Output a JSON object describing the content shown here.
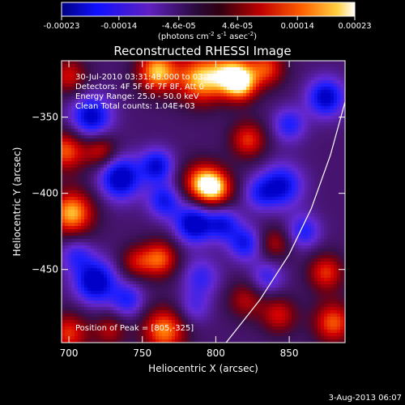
{
  "chart_data": {
    "type": "heatmap",
    "title": "Reconstructed RHESSI Image",
    "xlabel": "Heliocentric X (arcsec)",
    "ylabel": "Heliocentric Y (arcsec)",
    "xlim": [
      695,
      888
    ],
    "ylim": [
      -498,
      -313
    ],
    "x_ticks": [
      700,
      750,
      800,
      850
    ],
    "y_ticks": [
      -450,
      -400,
      -350
    ],
    "colorbar": {
      "label_main": "(photons cm",
      "label_sup1": "-2",
      "label_mid": " s",
      "label_sup2": "-1",
      "label_tail": " asec",
      "label_sup3": "-2",
      "label_close": ")",
      "range": [
        -0.00023,
        0.00023
      ],
      "ticks": [
        "-0.00023",
        "-0.00014",
        "-4.6e-05",
        "4.6e-05",
        "0.00014",
        "0.00023"
      ],
      "tick_values": [
        -0.00023,
        -0.00014,
        -4.6e-05,
        4.6e-05,
        0.00014,
        0.00023
      ]
    },
    "annotations": [
      "30-Jul-2010 03:31:48.000 to 03:33:00.000",
      "Detectors: 4F 5F 6F 7F 8F, Att 0",
      "Energy Range: 25.0 - 50.0 keV",
      "Clean    Total counts: 1.04E+03"
    ],
    "peak_label": "Position of Peak = [805,-325]",
    "peak": [
      805,
      -325
    ],
    "limb_points": [
      [
        807,
        -498
      ],
      [
        830,
        -470
      ],
      [
        850,
        -440
      ],
      [
        865,
        -410
      ],
      [
        878,
        -375
      ],
      [
        888,
        -340
      ]
    ],
    "blobs": [
      {
        "x": 760,
        "y": -320,
        "v": 1.0,
        "s": 10
      },
      {
        "x": 790,
        "y": -325,
        "v": 1.0,
        "s": 12
      },
      {
        "x": 812,
        "y": -322,
        "v": 0.9,
        "s": 10
      },
      {
        "x": 835,
        "y": -318,
        "v": 0.7,
        "s": 9
      },
      {
        "x": 700,
        "y": -323,
        "v": 0.6,
        "s": 9
      },
      {
        "x": 722,
        "y": -372,
        "v": 0.6,
        "s": 8
      },
      {
        "x": 698,
        "y": -372,
        "v": 0.8,
        "s": 10
      },
      {
        "x": 702,
        "y": -413,
        "v": 1.0,
        "s": 11
      },
      {
        "x": 700,
        "y": -492,
        "v": 0.7,
        "s": 10
      },
      {
        "x": 728,
        "y": -490,
        "v": 0.5,
        "s": 8
      },
      {
        "x": 745,
        "y": -445,
        "v": 0.5,
        "s": 8
      },
      {
        "x": 762,
        "y": -443,
        "v": 0.8,
        "s": 9
      },
      {
        "x": 765,
        "y": -490,
        "v": 0.9,
        "s": 11
      },
      {
        "x": 790,
        "y": -393,
        "v": 0.8,
        "s": 10
      },
      {
        "x": 800,
        "y": -397,
        "v": 0.8,
        "s": 9
      },
      {
        "x": 818,
        "y": -330,
        "v": 0.6,
        "s": 8
      },
      {
        "x": 822,
        "y": -365,
        "v": 0.7,
        "s": 9
      },
      {
        "x": 840,
        "y": -433,
        "v": 0.5,
        "s": 8
      },
      {
        "x": 820,
        "y": -470,
        "v": 0.5,
        "s": 9
      },
      {
        "x": 843,
        "y": -480,
        "v": 0.6,
        "s": 9
      },
      {
        "x": 875,
        "y": -452,
        "v": 0.7,
        "s": 9
      },
      {
        "x": 880,
        "y": -485,
        "v": 0.8,
        "s": 10
      },
      {
        "x": 715,
        "y": -350,
        "v": -0.9,
        "s": 10
      },
      {
        "x": 735,
        "y": -390,
        "v": -1.0,
        "s": 10
      },
      {
        "x": 760,
        "y": -382,
        "v": -0.8,
        "s": 8
      },
      {
        "x": 765,
        "y": -405,
        "v": -0.7,
        "s": 8
      },
      {
        "x": 785,
        "y": -420,
        "v": -1.0,
        "s": 9
      },
      {
        "x": 805,
        "y": -420,
        "v": -0.7,
        "s": 8
      },
      {
        "x": 820,
        "y": -433,
        "v": -0.7,
        "s": 8
      },
      {
        "x": 845,
        "y": -395,
        "v": -0.8,
        "s": 10
      },
      {
        "x": 860,
        "y": -425,
        "v": -0.6,
        "s": 8
      },
      {
        "x": 875,
        "y": -337,
        "v": -0.9,
        "s": 9
      },
      {
        "x": 850,
        "y": -355,
        "v": -0.6,
        "s": 8
      },
      {
        "x": 718,
        "y": -458,
        "v": -1.0,
        "s": 10
      },
      {
        "x": 740,
        "y": -470,
        "v": -0.6,
        "s": 8
      },
      {
        "x": 705,
        "y": -440,
        "v": -0.5,
        "s": 8
      },
      {
        "x": 790,
        "y": -455,
        "v": -0.5,
        "s": 9
      },
      {
        "x": 785,
        "y": -475,
        "v": -0.4,
        "s": 8
      },
      {
        "x": 835,
        "y": -455,
        "v": -0.5,
        "s": 8
      },
      {
        "x": 830,
        "y": -400,
        "v": -0.5,
        "s": 8
      }
    ]
  },
  "footer": {
    "date": "3-Aug-2013 06:07"
  }
}
